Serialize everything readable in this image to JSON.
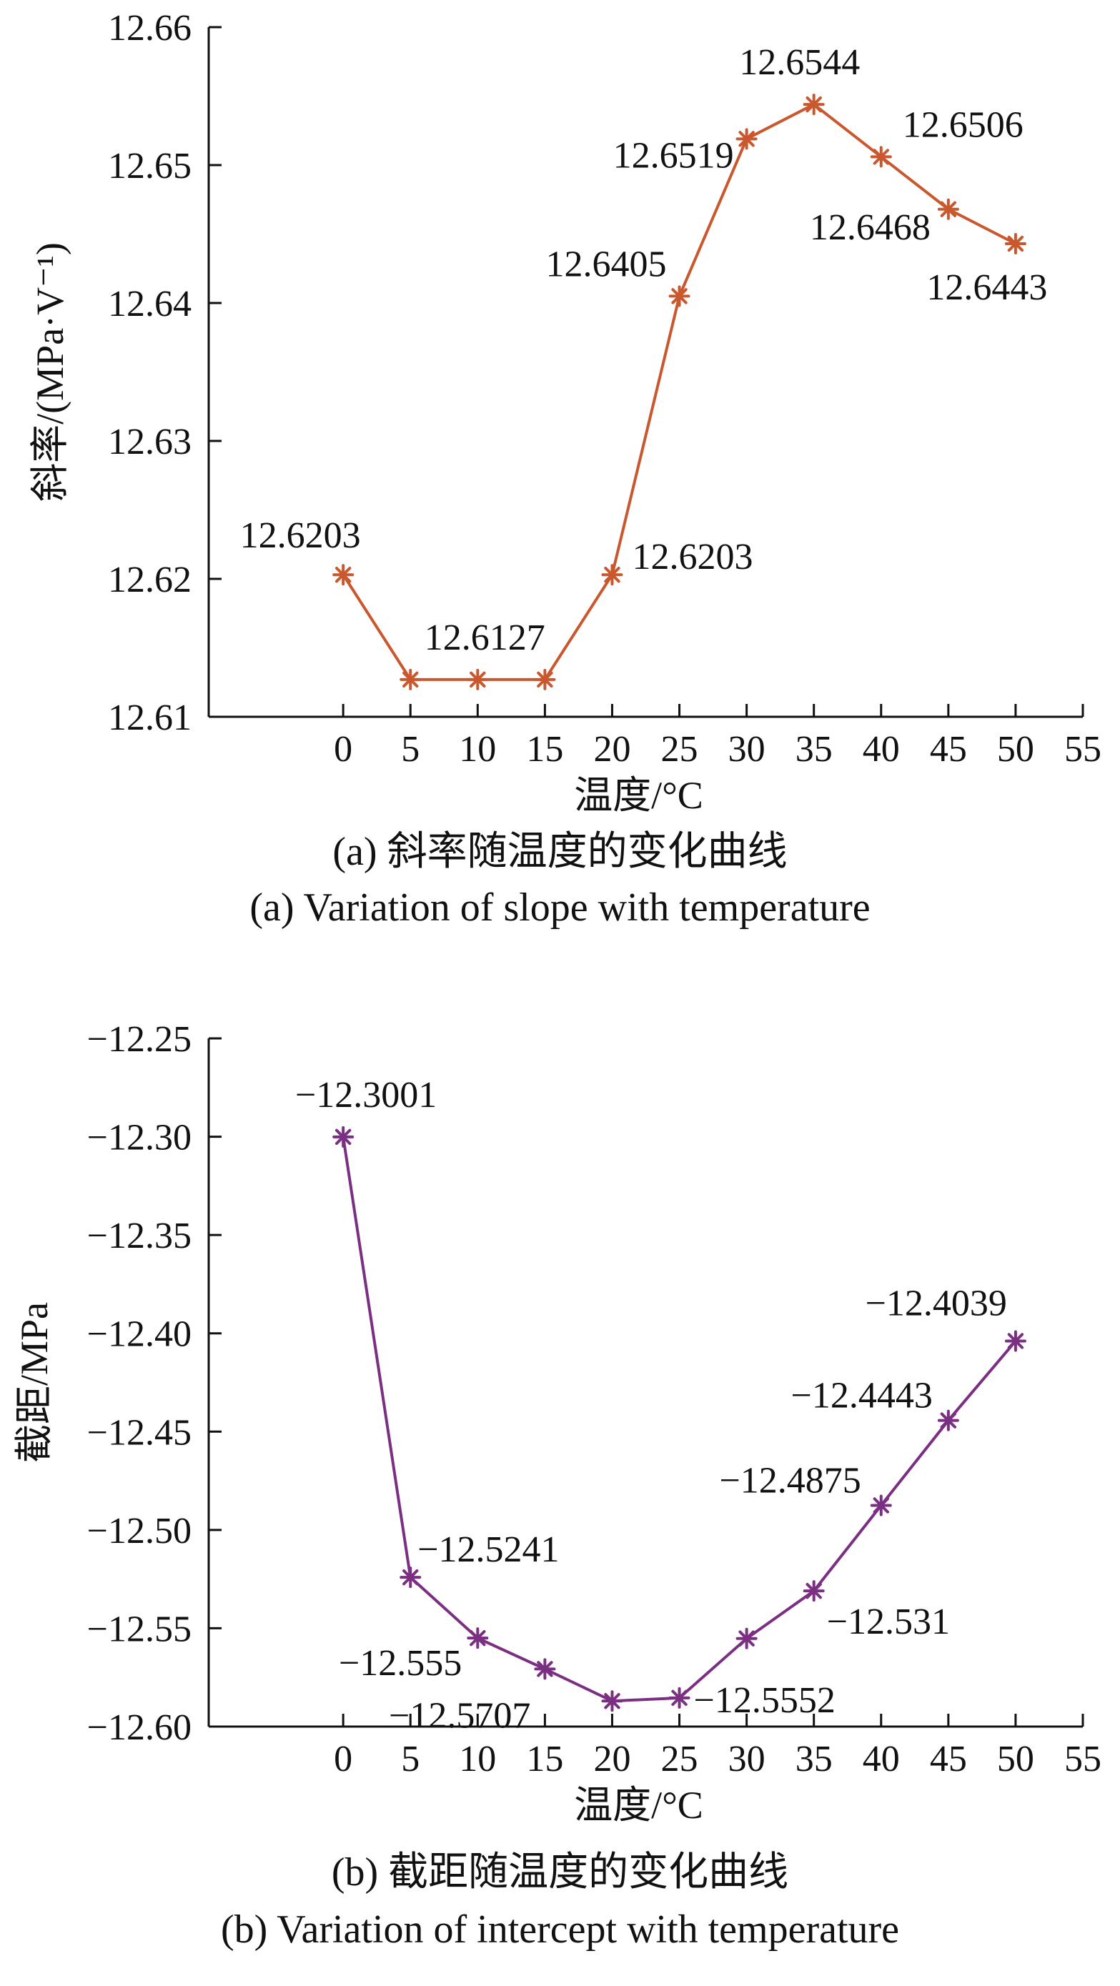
{
  "chart_data": [
    {
      "type": "line",
      "id": "a",
      "xlabel": "温度/°C",
      "ylabel": "斜率/(MPa·V⁻¹)",
      "xlim": [
        -10,
        55
      ],
      "ylim": [
        12.61,
        12.66
      ],
      "xticks": [
        0,
        5,
        10,
        15,
        20,
        25,
        30,
        35,
        40,
        45,
        50,
        55
      ],
      "yticks": [
        "12.61",
        "12.62",
        "12.63",
        "12.64",
        "12.65",
        "12.66"
      ],
      "color": "#c9582e",
      "marker": "asterisk",
      "grid": false,
      "x": [
        0,
        5,
        10,
        15,
        20,
        25,
        30,
        35,
        40,
        45,
        50
      ],
      "values": [
        12.6203,
        12.6127,
        12.6127,
        12.6127,
        12.6203,
        12.6405,
        12.6519,
        12.6544,
        12.6506,
        12.6468,
        12.6443
      ],
      "annotations": [
        {
          "x": 0,
          "text": "12.6203"
        },
        {
          "x": 10,
          "text": "12.6127"
        },
        {
          "x": 20,
          "text": "12.6203"
        },
        {
          "x": 25,
          "text": "12.6405"
        },
        {
          "x": 30,
          "text": "12.6519"
        },
        {
          "x": 35,
          "text": "12.6544"
        },
        {
          "x": 40,
          "text": "12.6506"
        },
        {
          "x": 45,
          "text": "12.6468"
        },
        {
          "x": 50,
          "text": "12.6443"
        }
      ],
      "caption_cn": "(a) 斜率随温度的变化曲线",
      "caption_en": "(a) Variation of slope with temperature"
    },
    {
      "type": "line",
      "id": "b",
      "xlabel": "温度/°C",
      "ylabel": "截距/MPa",
      "xlim": [
        -10,
        55
      ],
      "ylim": [
        -12.6,
        -12.25
      ],
      "xticks": [
        0,
        5,
        10,
        15,
        20,
        25,
        30,
        35,
        40,
        45,
        50,
        55
      ],
      "yticks": [
        "−12.25",
        "−12.30",
        "−12.35",
        "−12.40",
        "−12.45",
        "−12.50",
        "−12.55",
        "−12.60"
      ],
      "color": "#7b2f83",
      "marker": "asterisk",
      "grid": false,
      "x": [
        0,
        5,
        10,
        15,
        20,
        25,
        30,
        35,
        40,
        45,
        50
      ],
      "values": [
        -12.3001,
        -12.5241,
        -12.555,
        -12.5707,
        -12.587,
        -12.5854,
        -12.5552,
        -12.531,
        -12.4875,
        -12.4443,
        -12.4039
      ],
      "annotations": [
        {
          "x": 0,
          "text": "−12.3001"
        },
        {
          "x": 5,
          "text": "−12.5241"
        },
        {
          "x": 10,
          "text": "−12.555"
        },
        {
          "x": 15,
          "text": "−12.5707"
        },
        {
          "x": 25,
          "text": "−12.5552"
        },
        {
          "x": 35,
          "text": "−12.531"
        },
        {
          "x": 40,
          "text": "−12.4875"
        },
        {
          "x": 45,
          "text": "−12.4443"
        },
        {
          "x": 50,
          "text": "−12.4039"
        }
      ],
      "caption_cn": "(b) 截距随温度的变化曲线",
      "caption_en": "(b) Variation of intercept with temperature"
    }
  ]
}
